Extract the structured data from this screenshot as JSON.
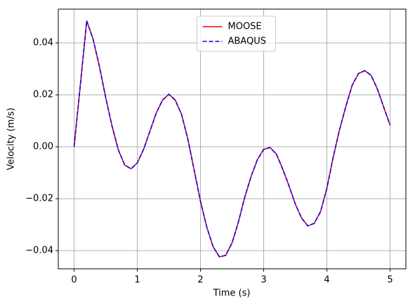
{
  "chart_data": {
    "type": "line",
    "xlabel": "Time (s)",
    "ylabel": "Velocity (m/s)",
    "x": [
      0,
      0.1,
      0.2,
      0.3,
      0.4,
      0.5,
      0.6,
      0.7,
      0.8,
      0.9,
      1.0,
      1.1,
      1.2,
      1.3,
      1.4,
      1.5,
      1.6,
      1.7,
      1.8,
      1.9,
      2.0,
      2.1,
      2.2,
      2.3,
      2.4,
      2.5,
      2.6,
      2.7,
      2.8,
      2.9,
      3.0,
      3.1,
      3.2,
      3.3,
      3.4,
      3.5,
      3.6,
      3.7,
      3.8,
      3.9,
      4.0,
      4.1,
      4.2,
      4.3,
      4.4,
      4.5,
      4.6,
      4.7,
      4.8,
      4.9,
      5.0
    ],
    "series": [
      {
        "name": "MOOSE",
        "color": "#ff0000",
        "linestyle": "solid",
        "values": [
          0,
          0.024,
          0.0485,
          0.0415,
          0.031,
          0.019,
          0.008,
          -0.0012,
          -0.007,
          -0.0085,
          -0.0062,
          -0.001,
          0.006,
          0.013,
          0.018,
          0.0202,
          0.018,
          0.0125,
          0.003,
          -0.009,
          -0.021,
          -0.031,
          -0.0385,
          -0.0424,
          -0.0418,
          -0.037,
          -0.029,
          -0.0195,
          -0.0115,
          -0.005,
          -0.001,
          -0.0003,
          -0.0028,
          -0.0085,
          -0.015,
          -0.022,
          -0.0275,
          -0.0305,
          -0.0295,
          -0.025,
          -0.016,
          -0.004,
          0.0065,
          0.0155,
          0.0237,
          0.0282,
          0.0293,
          0.0275,
          0.0222,
          0.0152,
          0.0083
        ]
      },
      {
        "name": "ABAQUS",
        "color": "#0000ff",
        "linestyle": "dashed",
        "values": [
          0,
          0.024,
          0.0485,
          0.0415,
          0.031,
          0.019,
          0.008,
          -0.0012,
          -0.007,
          -0.0085,
          -0.0062,
          -0.001,
          0.006,
          0.013,
          0.018,
          0.0202,
          0.018,
          0.0125,
          0.003,
          -0.009,
          -0.021,
          -0.031,
          -0.0385,
          -0.0424,
          -0.0418,
          -0.037,
          -0.029,
          -0.0195,
          -0.0115,
          -0.005,
          -0.001,
          -0.0003,
          -0.0028,
          -0.0085,
          -0.015,
          -0.022,
          -0.0275,
          -0.0305,
          -0.0295,
          -0.025,
          -0.016,
          -0.004,
          0.0065,
          0.0155,
          0.0237,
          0.0282,
          0.0293,
          0.0275,
          0.0222,
          0.0152,
          0.0083
        ]
      }
    ],
    "xlim": [
      -0.25,
      5.25
    ],
    "xticks": [
      0,
      1,
      2,
      3,
      4,
      5
    ],
    "ylim": [
      -0.047,
      0.053
    ],
    "yticks": [
      {
        "value": -0.04,
        "label": "−0.04"
      },
      {
        "value": -0.02,
        "label": "−0.02"
      },
      {
        "value": 0,
        "label": "0.00"
      },
      0.02,
      0.04
    ],
    "grid": true,
    "legend": "upper center"
  }
}
